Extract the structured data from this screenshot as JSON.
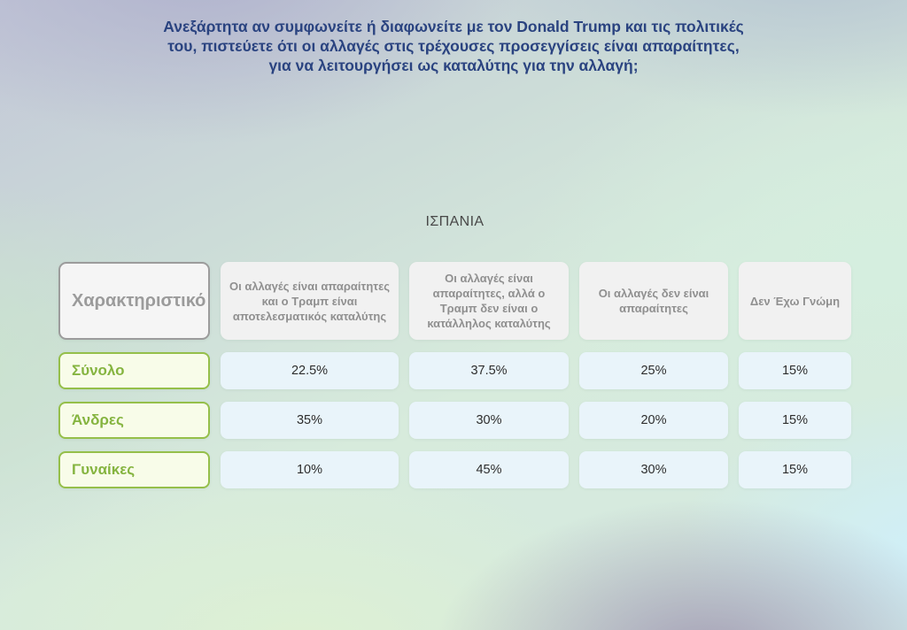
{
  "question": "Ανεξάρτητα αν συμφωνείτε ή διαφωνείτε με τον Donald Trump και τις πολιτικές του, πιστεύετε ότι οι αλλαγές στις τρέχουσες προσεγγίσεις είναι απαραίτητες, για να λειτουργήσει ως καταλύτης για την αλλαγή;",
  "section_title": "ΙΣΠΑΝΙΑ",
  "colors": {
    "title_text": "#2a4380",
    "section_title_text": "#484848",
    "header_cell_bg": "#f1f1f1",
    "header_cell_text": "#8f8f8f",
    "corner_cell_border": "#9c9c9c",
    "row_label_bg": "#f8fce9",
    "row_label_border": "#95bf4a",
    "row_label_text": "#85b440",
    "data_cell_bg": "#e9f4fa",
    "data_cell_text": "#2d2d2d"
  },
  "chart_data": {
    "type": "table",
    "title": "ΙΣΠΑΝΙΑ",
    "question": "Ανεξάρτητα αν συμφωνείτε ή διαφωνείτε με τον Donald Trump και τις πολιτικές του, πιστεύετε ότι οι αλλαγές στις τρέχουσες προσεγγίσεις είναι απαραίτητες, για να λειτουργήσει ως καταλύτης για την αλλαγή;",
    "columns": [
      "Χαρακτηριστικό",
      "Οι αλλαγές είναι απαραίτητες και ο Τραμπ είναι αποτελεσματικός καταλύτης",
      "Οι αλλαγές είναι απαραίτητες, αλλά ο Τραμπ δεν είναι ο κατάλληλος καταλύτης",
      "Οι αλλαγές δεν είναι απαραίτητες",
      "Δεν Έχω Γνώμη"
    ],
    "rows": [
      {
        "label": "Σύνολο",
        "values": [
          "22.5%",
          "37.5%",
          "25%",
          "15%"
        ]
      },
      {
        "label": "Άνδρες",
        "values": [
          "35%",
          "30%",
          "20%",
          "15%"
        ]
      },
      {
        "label": "Γυναίκες",
        "values": [
          "10%",
          "45%",
          "30%",
          "15%"
        ]
      }
    ]
  }
}
